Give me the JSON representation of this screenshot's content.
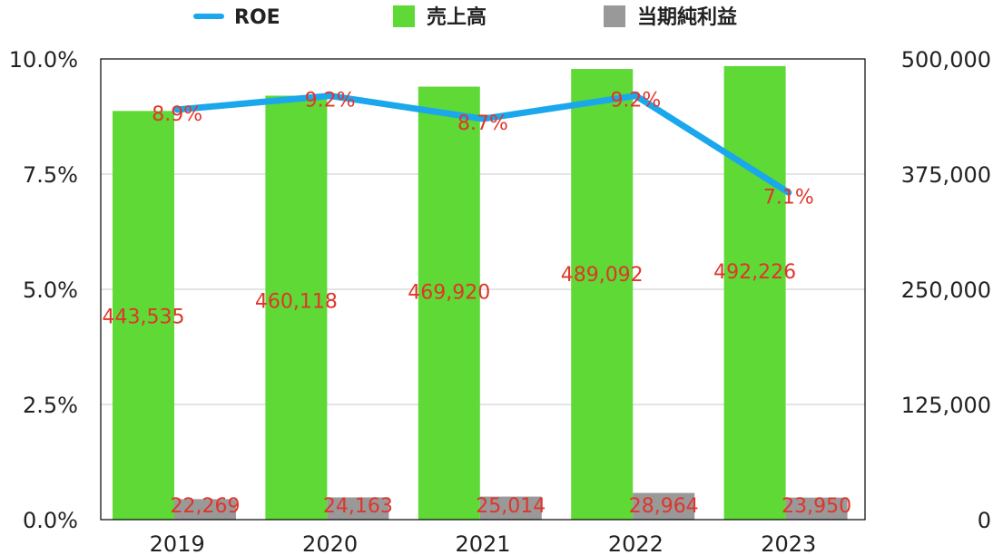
{
  "chart_data": {
    "type": "bar",
    "categories": [
      "2019",
      "2020",
      "2021",
      "2022",
      "2023"
    ],
    "series": [
      {
        "name": "ROE",
        "kind": "line",
        "axis": "left",
        "color": "#1aa7ec",
        "values": [
          8.9,
          9.2,
          8.7,
          9.2,
          7.1
        ],
        "labels": [
          "8.9%",
          "9.2%",
          "8.7%",
          "9.2%",
          "7.1%"
        ]
      },
      {
        "name": "売上高",
        "kind": "bar",
        "axis": "right",
        "color": "#5ed936",
        "values": [
          443535,
          460118,
          469920,
          489092,
          492226
        ],
        "labels": [
          "443,535",
          "460,118",
          "469,920",
          "489,092",
          "492,226"
        ]
      },
      {
        "name": "当期純利益",
        "kind": "bar",
        "axis": "right",
        "color": "#999999",
        "values": [
          22269,
          24163,
          25014,
          28964,
          23950
        ],
        "labels": [
          "22,269",
          "24,163",
          "25,014",
          "28,964",
          "23,950"
        ]
      }
    ],
    "y_left": {
      "range": [
        0,
        10
      ],
      "ticks": [
        "0.0%",
        "2.5%",
        "5.0%",
        "7.5%",
        "10.0%"
      ]
    },
    "y_right": {
      "range": [
        0,
        500000
      ],
      "ticks": [
        "0",
        "125,000",
        "250,000",
        "375,000",
        "500,000"
      ]
    },
    "legend_position": "top-center",
    "grid": true,
    "colors": {
      "grid": "#c8c8c8",
      "axis": "#000000",
      "data_label": "#e0352b"
    }
  }
}
